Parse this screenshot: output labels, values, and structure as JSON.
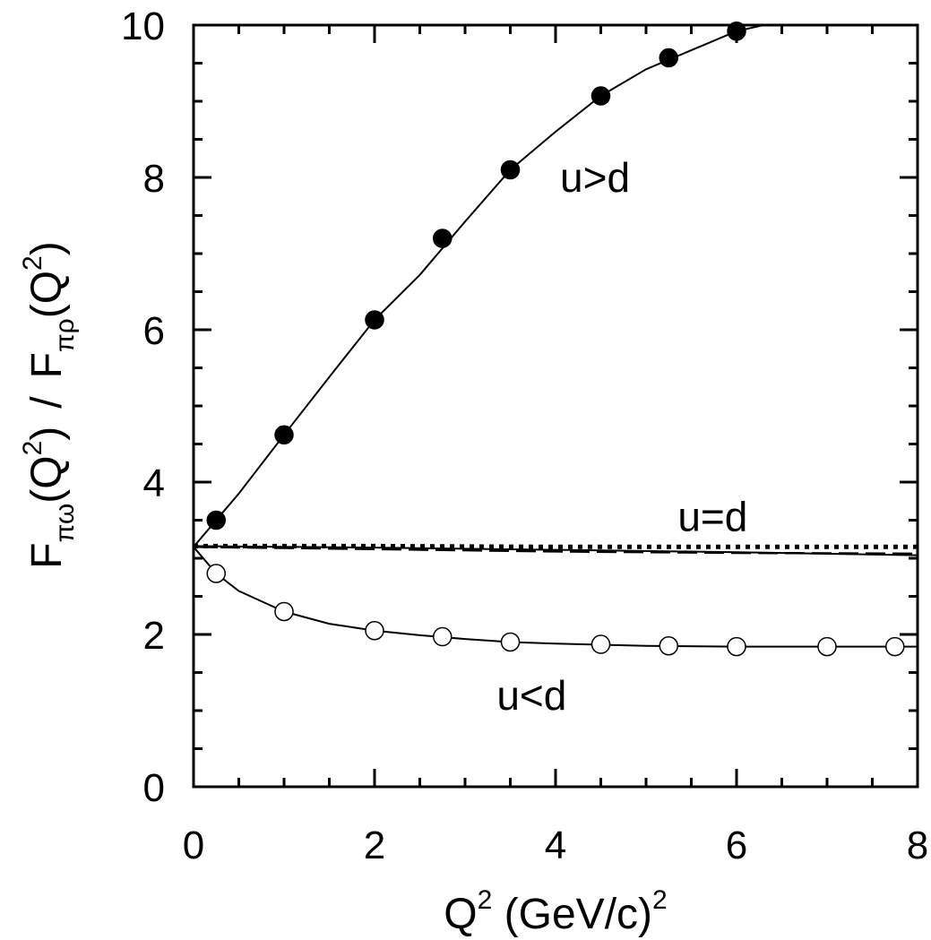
{
  "chart_data": {
    "type": "line",
    "xlabel": {
      "main": "Q",
      "sup": "2",
      "unit": " (GeV/c)",
      "unit_sup": "2"
    },
    "ylabel": {
      "f1": "F",
      "f1_sub": "πω",
      "arg1": "(Q",
      "arg1_sup": "2",
      "arg1_close": ")",
      "slash": "/",
      "f2": "F",
      "f2_sub": "πρ",
      "arg2": "(Q",
      "arg2_sup": "2",
      "arg2_close": ")"
    },
    "xlim": [
      0,
      8
    ],
    "ylim": [
      0,
      10
    ],
    "x_ticks": [
      "0",
      "2",
      "4",
      "6",
      "8"
    ],
    "y_ticks": [
      "0",
      "2",
      "4",
      "6",
      "8",
      "10"
    ],
    "annotations": [
      {
        "text": "u>d",
        "x": 4.05,
        "y": 8.0
      },
      {
        "text": "u=d",
        "x": 5.35,
        "y": 3.55
      },
      {
        "text": "u<d",
        "x": 3.35,
        "y": 1.2
      }
    ],
    "series": [
      {
        "marker": "filled-circle",
        "x": [
          0.25,
          1.0,
          2.0,
          2.75,
          3.5,
          4.5,
          5.25,
          6.0
        ],
        "y": [
          3.5,
          4.62,
          6.13,
          7.2,
          8.1,
          9.07,
          9.57,
          9.92
        ]
      },
      {
        "marker": "open-circle",
        "x": [
          0.25,
          1.0,
          2.0,
          2.75,
          3.5,
          4.5,
          5.25,
          6.0,
          7.0,
          7.75
        ],
        "y": [
          2.8,
          2.3,
          2.05,
          1.97,
          1.9,
          1.87,
          1.85,
          1.84,
          1.84,
          1.84
        ]
      },
      {
        "line": "solid",
        "x": [
          0,
          0.25,
          0.5,
          1.0,
          1.5,
          2.0,
          2.5,
          3.0,
          3.5,
          4.0,
          4.5,
          5.0,
          5.5,
          6.0,
          6.3
        ],
        "y": [
          3.15,
          3.5,
          3.85,
          4.62,
          5.38,
          6.13,
          6.72,
          7.42,
          8.1,
          8.6,
          9.07,
          9.42,
          9.67,
          9.92,
          10.0
        ]
      },
      {
        "line": "solid",
        "x": [
          0,
          0.25,
          0.5,
          1.0,
          1.5,
          2.0,
          2.5,
          3.0,
          3.5,
          4.0,
          5.0,
          6.0,
          7.0,
          8.0
        ],
        "y": [
          3.15,
          2.8,
          2.57,
          2.3,
          2.14,
          2.05,
          1.99,
          1.94,
          1.9,
          1.88,
          1.85,
          1.84,
          1.84,
          1.84
        ]
      },
      {
        "line": "solid",
        "x": [
          0,
          2,
          4,
          6,
          8
        ],
        "y": [
          3.16,
          3.14,
          3.11,
          3.08,
          3.04
        ]
      },
      {
        "line": "dashed",
        "x": [
          0,
          2,
          4,
          6,
          8
        ],
        "y": [
          3.15,
          3.12,
          3.09,
          3.07,
          3.06
        ]
      },
      {
        "line": "dotted",
        "x": [
          0,
          2,
          4,
          6,
          8
        ],
        "y": [
          3.16,
          3.16,
          3.15,
          3.15,
          3.15
        ]
      }
    ]
  }
}
